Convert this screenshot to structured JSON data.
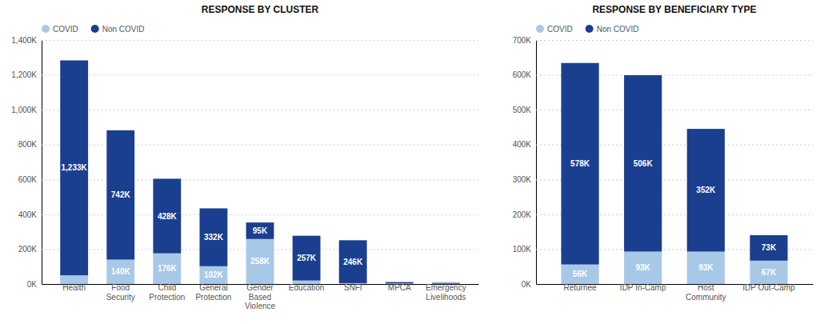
{
  "chart_data": [
    {
      "type": "bar",
      "title": "RESPONSE BY CLUSTER",
      "stacked": true,
      "grid": true,
      "legend": "upper left",
      "data_labels": true,
      "categories": [
        "Health",
        "Food\nSecurity",
        "Child\nProtection",
        "General\nProtection",
        "Gender\nBased\nViolence",
        "Education",
        "SNFI",
        "MPCA",
        "Emergency\nLivelihoods"
      ],
      "series": [
        {
          "name": "COVID",
          "color": "#a8c8e8",
          "values": [
            50000,
            140000,
            176000,
            102000,
            258000,
            20000,
            5000,
            3000,
            2000
          ],
          "value_labels": [
            null,
            "140K",
            "176K",
            "102K",
            "258K",
            null,
            null,
            null,
            null
          ]
        },
        {
          "name": "Non COVID",
          "color": "#1a3f8f",
          "values": [
            1233000,
            742000,
            428000,
            332000,
            95000,
            257000,
            246000,
            8000,
            5000
          ],
          "value_labels": [
            "1,233K",
            "742K",
            "428K",
            "332K",
            "95K",
            "257K",
            "246K",
            null,
            null
          ]
        }
      ],
      "ylim": [
        0,
        1400000
      ],
      "yticks": [
        {
          "value": 0,
          "label": "0K"
        },
        {
          "value": 200000,
          "label": "200K"
        },
        {
          "value": 400000,
          "label": "400K"
        },
        {
          "value": 600000,
          "label": "600K"
        },
        {
          "value": 800000,
          "label": "800K"
        },
        {
          "value": 1000000,
          "label": "1,000K"
        },
        {
          "value": 1200000,
          "label": "1,200K"
        },
        {
          "value": 1400000,
          "label": "1,400K"
        }
      ]
    },
    {
      "type": "bar",
      "title": "RESPONSE BY BENEFICIARY TYPE",
      "stacked": true,
      "grid": true,
      "legend": "upper left",
      "data_labels": true,
      "categories": [
        "Returnee",
        "IDP In-Camp",
        "Host\nCommunity",
        "IDP Out-Camp"
      ],
      "series": [
        {
          "name": "COVID",
          "color": "#a8c8e8",
          "values": [
            56000,
            93000,
            93000,
            67000
          ],
          "value_labels": [
            "56K",
            "93K",
            "93K",
            "67K"
          ]
        },
        {
          "name": "Non COVID",
          "color": "#1a3f8f",
          "values": [
            578000,
            506000,
            352000,
            73000
          ],
          "value_labels": [
            "578K",
            "506K",
            "352K",
            "73K"
          ]
        }
      ],
      "ylim": [
        0,
        700000
      ],
      "yticks": [
        {
          "value": 0,
          "label": "0K"
        },
        {
          "value": 100000,
          "label": "100K"
        },
        {
          "value": 200000,
          "label": "200K"
        },
        {
          "value": 300000,
          "label": "300K"
        },
        {
          "value": 400000,
          "label": "400K"
        },
        {
          "value": 500000,
          "label": "500K"
        },
        {
          "value": 600000,
          "label": "600K"
        },
        {
          "value": 700000,
          "label": "700K"
        }
      ]
    }
  ]
}
